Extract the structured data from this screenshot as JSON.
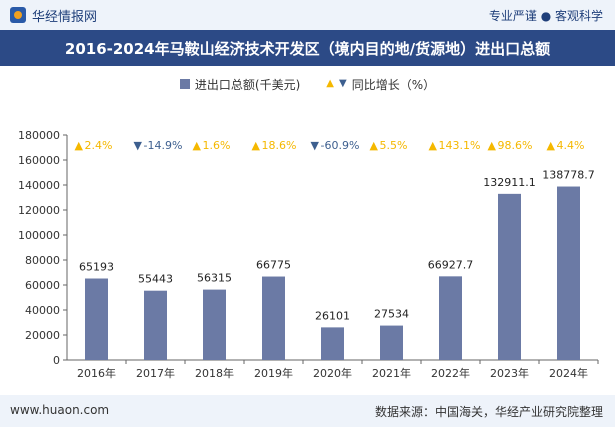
{
  "header": {
    "brand": "华经情报网",
    "tagline": "专业严谨 ● 客观科学"
  },
  "footer": {
    "website": "www.huaon.com",
    "source": "数据来源：中国海关，华经产业研究院整理"
  },
  "colors": {
    "bar": "#6b7aa5",
    "up": "#f5b800",
    "down": "#3d5f8f",
    "title_bg": "#2c4a86"
  },
  "chart_data": {
    "type": "bar",
    "title": "2016-2024年马鞍山经济技术开发区（境内目的地/货源地）进出口总额",
    "categories": [
      "2016年",
      "2017年",
      "2018年",
      "2019年",
      "2020年",
      "2021年",
      "2022年",
      "2023年",
      "2024年"
    ],
    "series": [
      {
        "name": "进出口总额(千美元)",
        "values": [
          65193,
          55443,
          56315,
          66775,
          26101,
          27534,
          66927.7,
          132911.1,
          138778.7
        ],
        "labels": [
          "65193",
          "55443",
          "56315",
          "66775",
          "26101",
          "27534",
          "66927.7",
          "132911.1",
          "138778.7"
        ]
      },
      {
        "name": "同比增长（%）",
        "values": [
          2.4,
          -14.9,
          1.6,
          18.6,
          -60.9,
          5.5,
          143.1,
          98.6,
          4.4
        ],
        "labels": [
          "2.4%",
          "-14.9%",
          "1.6%",
          "18.6%",
          "-60.9%",
          "5.5%",
          "143.1%",
          "98.6%",
          "4.4%"
        ]
      }
    ],
    "ylim": [
      0,
      180000
    ],
    "yticks": [
      0,
      20000,
      40000,
      60000,
      80000,
      100000,
      120000,
      140000,
      160000,
      180000
    ],
    "ytick_labels": [
      "0",
      "20000",
      "40000",
      "60000",
      "80000",
      "100000",
      "120000",
      "140000",
      "160000",
      "180000"
    ],
    "legend_placement": "top-center",
    "grid": false
  }
}
